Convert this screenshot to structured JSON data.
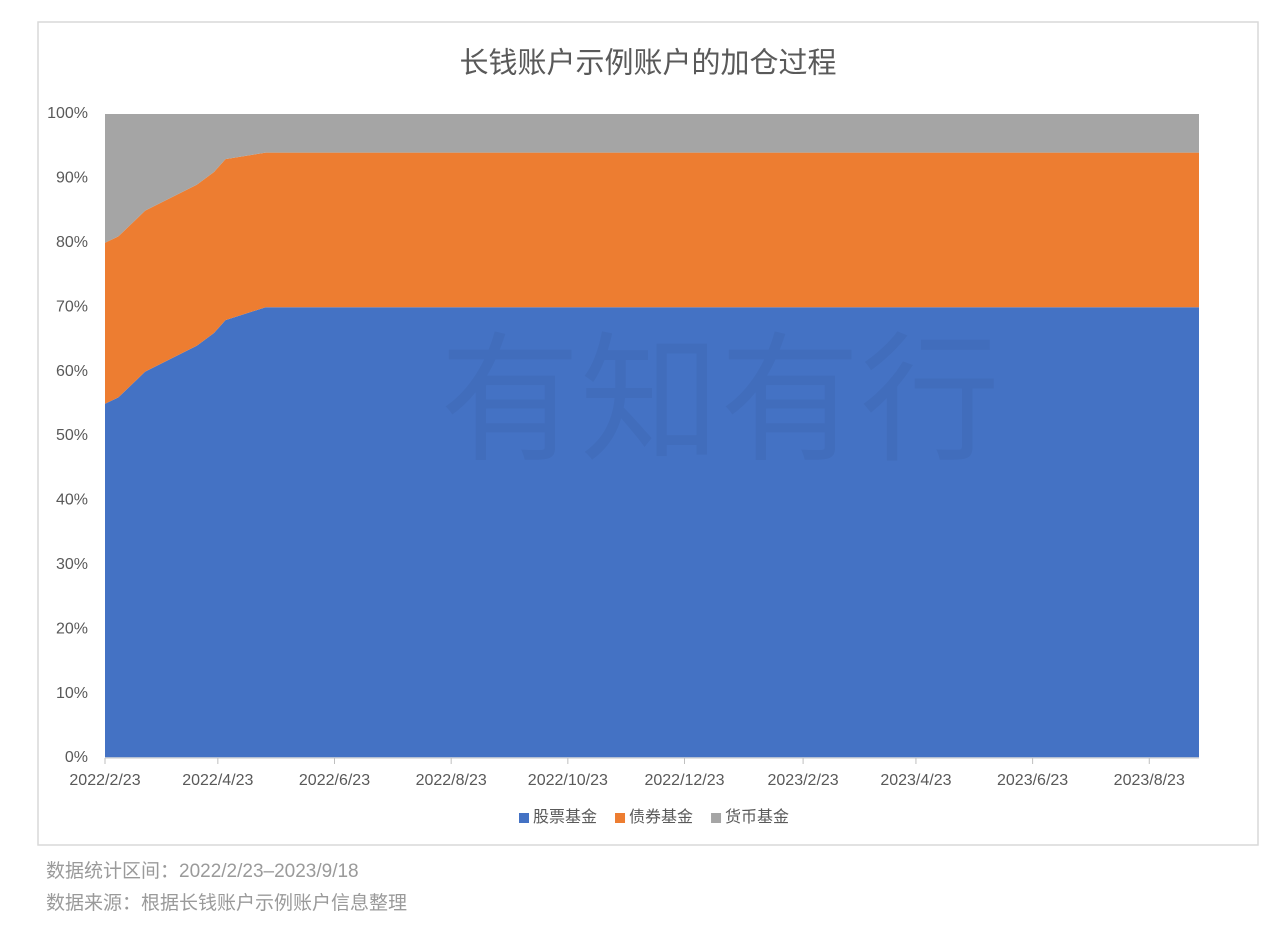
{
  "chart_data": {
    "type": "area",
    "title": "长钱账户示例账户的加仓过程",
    "watermark": "有知有行",
    "stacked": true,
    "x": [
      "2022/2/23",
      "2022/3/2",
      "2022/3/16",
      "2022/4/12",
      "2022/4/21",
      "2022/4/27",
      "2022/5/18",
      "2023/9/18"
    ],
    "series": [
      {
        "name": "股票基金",
        "color": "#4472c4",
        "values": [
          55,
          56,
          60,
          64,
          66,
          68,
          70,
          70
        ]
      },
      {
        "name": "债券基金",
        "color": "#ed7d31",
        "values": [
          25,
          25,
          25,
          25,
          25,
          25,
          24,
          24
        ]
      },
      {
        "name": "货币基金",
        "color": "#a5a5a5",
        "values": [
          20,
          19,
          15,
          11,
          9,
          7,
          6,
          6
        ]
      }
    ],
    "xlim": [
      "2022/2/23",
      "2023/9/18"
    ],
    "xticks": [
      "2022/2/23",
      "2022/4/23",
      "2022/6/23",
      "2022/8/23",
      "2022/10/23",
      "2022/12/23",
      "2023/2/23",
      "2023/4/23",
      "2023/6/23",
      "2023/8/23"
    ],
    "ylim": [
      0,
      100
    ],
    "yticks": [
      {
        "value": 0,
        "label": "0%"
      },
      {
        "value": 10,
        "label": "10%"
      },
      {
        "value": 20,
        "label": "20%"
      },
      {
        "value": 30,
        "label": "30%"
      },
      {
        "value": 40,
        "label": "40%"
      },
      {
        "value": 50,
        "label": "50%"
      },
      {
        "value": 60,
        "label": "60%"
      },
      {
        "value": 70,
        "label": "70%"
      },
      {
        "value": 80,
        "label": "80%"
      },
      {
        "value": 90,
        "label": "90%"
      },
      {
        "value": 100,
        "label": "100%"
      }
    ],
    "legend": "bottom",
    "notes": [
      "数据统计区间：2022/2/23–2023/9/18",
      "数据来源：根据长钱账户示例账户信息整理"
    ]
  }
}
